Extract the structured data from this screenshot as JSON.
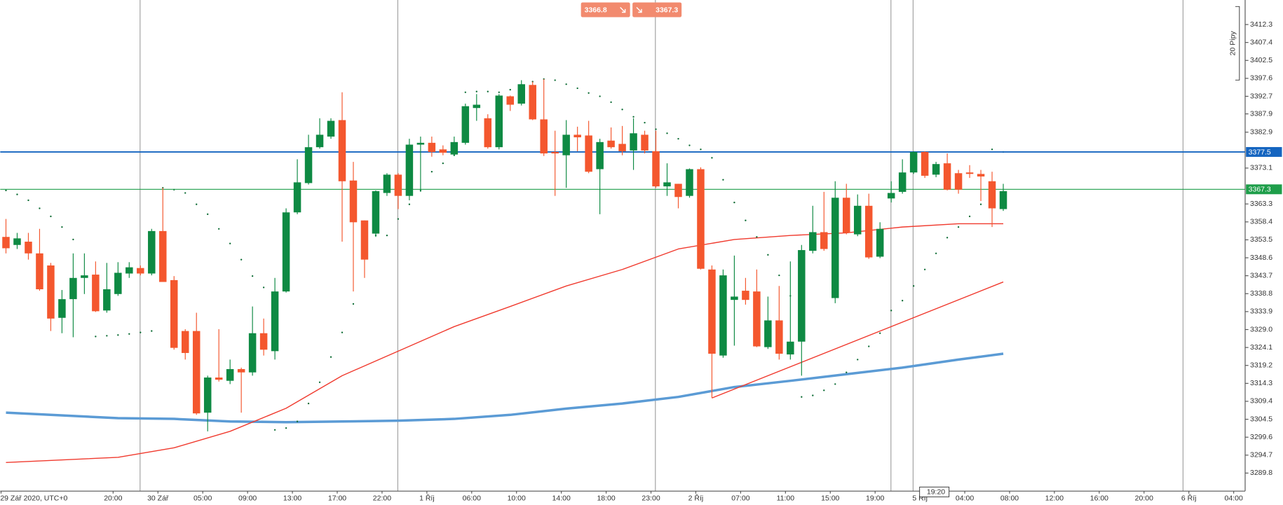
{
  "chart_data": {
    "type": "candlestick",
    "up_color": "#0e8a43",
    "down_color": "#f4572e",
    "open": [
      3354.3,
      3352.1,
      3353.0,
      3349.8,
      3346.5,
      3332.2,
      3337.3,
      3343.1,
      3344.0,
      3334.2,
      3338.7,
      3344.3,
      3345.8,
      3344.3,
      3355.9,
      3342.5,
      3328.6,
      3328.6,
      3306.3,
      3315.9,
      3315.0,
      3318.2,
      3317.3,
      3328.0,
      3323.1,
      3339.4,
      3361.0,
      3369.0,
      3378.8,
      3381.7,
      3386.2,
      3369.7,
      3358.8,
      3355.2,
      3366.3,
      3371.3,
      3365.5,
      3379.5,
      3380.0,
      3378.2,
      3376.8,
      3380.0,
      3389.5,
      3386.7,
      3378.8,
      3392.7,
      3390.7,
      3395.8,
      3386.4,
      3377.5,
      3376.6,
      3382.2,
      3382.0,
      3372.8,
      3380.6,
      3379.7,
      3377.9,
      3382.2,
      3377.7,
      3368.1,
      3368.8,
      3365.5,
      3372.8,
      3345.4,
      3321.9,
      3337.1,
      3339.6,
      3339.4,
      3324.2,
      3331.5,
      3322.2,
      3325.7,
      3350.5,
      3355.6,
      3337.6,
      3365.0,
      3355.0,
      3362.8,
      3348.9,
      3364.8,
      3366.6,
      3371.9,
      3377.5,
      3371.3,
      3374.4,
      3371.7,
      3371.9,
      3371.5,
      3369.5,
      3361.9
    ],
    "high": [
      3359.2,
      3355.4,
      3355.4,
      3356.5,
      3347.2,
      3339.8,
      3349.8,
      3349.8,
      3347.6,
      3347.2,
      3347.4,
      3347.4,
      3346.5,
      3356.5,
      3367.7,
      3343.6,
      3329.1,
      3333.6,
      3316.4,
      3329.1,
      3320.8,
      3318.6,
      3335.3,
      3332.0,
      3343.1,
      3362.1,
      3375.5,
      3382.2,
      3386.7,
      3386.7,
      3393.8,
      3374.8,
      3358.8,
      3367.0,
      3371.7,
      3371.7,
      3381.1,
      3381.7,
      3381.7,
      3379.3,
      3381.7,
      3390.7,
      3393.3,
      3387.8,
      3393.3,
      3392.9,
      3397.1,
      3396.7,
      3397.4,
      3383.3,
      3386.2,
      3384.4,
      3386.0,
      3381.1,
      3384.2,
      3384.6,
      3386.7,
      3383.3,
      3383.3,
      3374.4,
      3368.8,
      3373.0,
      3373.3,
      3346.5,
      3345.4,
      3349.2,
      3343.1,
      3345.4,
      3338.0,
      3340.9,
      3347.6,
      3352.1,
      3362.8,
      3366.6,
      3369.5,
      3368.8,
      3365.9,
      3366.1,
      3358.3,
      3369.5,
      3375.5,
      3377.7,
      3377.7,
      3374.8,
      3377.1,
      3372.6,
      3373.9,
      3372.6,
      3372.1,
      3368.8
    ],
    "low": [
      3349.8,
      3351.0,
      3348.1,
      3339.6,
      3328.6,
      3328.0,
      3326.9,
      3338.7,
      3333.8,
      3333.6,
      3338.2,
      3343.1,
      3343.8,
      3343.8,
      3342.0,
      3323.5,
      3320.8,
      3305.7,
      3301.2,
      3314.8,
      3314.1,
      3306.3,
      3316.4,
      3321.9,
      3320.8,
      3339.1,
      3360.5,
      3368.6,
      3378.4,
      3381.1,
      3353.0,
      3339.4,
      3343.1,
      3354.3,
      3365.5,
      3361.9,
      3364.3,
      3366.6,
      3376.2,
      3376.6,
      3376.4,
      3379.5,
      3386.0,
      3378.4,
      3378.2,
      3388.7,
      3390.2,
      3386.2,
      3376.4,
      3365.5,
      3367.7,
      3377.7,
      3371.7,
      3360.5,
      3378.4,
      3376.6,
      3372.6,
      3377.1,
      3367.7,
      3365.5,
      3362.1,
      3365.0,
      3345.4,
      3310.3,
      3321.3,
      3324.6,
      3335.8,
      3324.2,
      3323.7,
      3320.8,
      3320.8,
      3316.4,
      3349.8,
      3350.5,
      3336.2,
      3355.0,
      3354.5,
      3348.3,
      3348.5,
      3363.7,
      3366.1,
      3371.5,
      3370.4,
      3370.6,
      3367.0,
      3366.1,
      3370.4,
      3364.1,
      3357.0,
      3361.4
    ],
    "close": [
      3351.2,
      3353.9,
      3349.8,
      3340.0,
      3332.0,
      3337.3,
      3343.1,
      3343.8,
      3334.0,
      3340.0,
      3344.5,
      3346.0,
      3344.3,
      3355.9,
      3342.0,
      3324.0,
      3322.6,
      3306.1,
      3315.9,
      3315.3,
      3318.2,
      3317.3,
      3328.0,
      3323.5,
      3339.4,
      3361.0,
      3369.2,
      3378.8,
      3382.2,
      3386.0,
      3369.5,
      3358.3,
      3348.1,
      3366.8,
      3371.3,
      3365.5,
      3379.5,
      3380.0,
      3377.5,
      3377.3,
      3380.2,
      3390.0,
      3390.4,
      3378.8,
      3392.9,
      3390.4,
      3396.0,
      3386.4,
      3377.1,
      3377.1,
      3382.2,
      3381.5,
      3372.1,
      3380.2,
      3378.8,
      3377.7,
      3382.6,
      3377.9,
      3368.1,
      3369.2,
      3365.2,
      3372.8,
      3345.6,
      3322.4,
      3343.8,
      3338.0,
      3337.1,
      3324.4,
      3331.5,
      3322.4,
      3325.7,
      3350.7,
      3355.6,
      3351.0,
      3365.0,
      3355.4,
      3362.8,
      3348.7,
      3356.5,
      3366.3,
      3371.9,
      3377.5,
      3371.0,
      3374.2,
      3367.2,
      3367.2,
      3371.5,
      3370.8,
      3362.1,
      3366.8
    ],
    "sar": {
      "color": "#0b6b33",
      "values": [
        3367.0,
        3365.9,
        3364.3,
        3362.1,
        3359.9,
        3357.0,
        3353.6,
        null,
        3327.1,
        3327.3,
        3327.5,
        3327.8,
        3328.2,
        3328.6,
        3367.7,
        3367.2,
        3366.3,
        3363.2,
        3360.5,
        3356.5,
        3352.5,
        3348.1,
        3343.6,
        3340.5,
        3301.6,
        3302.1,
        3303.9,
        3308.8,
        3314.6,
        3321.5,
        3328.2,
        3336.0,
        3348.5,
        3354.7,
        3354.7,
        3359.2,
        3363.2,
        3367.0,
        3372.1,
        3374.4,
        3376.6,
        3393.8,
        3394.0,
        3394.0,
        3393.8,
        3394.5,
        3395.8,
        3396.7,
        3397.4,
        3397.1,
        3396.0,
        3394.9,
        3393.6,
        3392.7,
        3391.1,
        3389.1,
        3387.1,
        3385.5,
        3383.7,
        3382.6,
        3381.1,
        3379.3,
        3378.2,
        3375.9,
        3369.9,
        3363.7,
        3358.8,
        3354.3,
        3349.4,
        3343.8,
        3338.2,
        3310.6,
        3311.0,
        3312.4,
        3314.1,
        3317.3,
        3320.8,
        3324.4,
        3328.0,
        3334.2,
        3336.9,
        3340.9,
        3345.4,
        3349.8,
        3354.1,
        3357.0,
        3359.9,
        3363.2,
        3378.2,
        3377.5
      ]
    },
    "indicators": [
      {
        "type": "line",
        "color": "#5b9bd5",
        "width": 3,
        "x": [
          0,
          10,
          15,
          20,
          25,
          30,
          35,
          40,
          45,
          50,
          55,
          60,
          65,
          70,
          75,
          80,
          85,
          89
        ],
        "values": [
          3306.3,
          3304.8,
          3304.6,
          3303.9,
          3303.7,
          3303.9,
          3304.1,
          3304.6,
          3305.7,
          3307.4,
          3308.8,
          3310.6,
          3313.3,
          3315.0,
          3316.8,
          3318.6,
          3320.8,
          3322.4
        ]
      },
      {
        "type": "line",
        "color": "#f03a2e",
        "width": 1.2,
        "x": [
          0,
          10,
          15,
          20,
          25,
          30,
          35,
          40,
          45,
          50,
          55,
          60,
          65,
          70,
          75,
          80,
          85,
          89
        ],
        "values": [
          3292.7,
          3294.1,
          3296.7,
          3301.2,
          3307.5,
          3316.4,
          3323.1,
          3329.8,
          3335.3,
          3340.9,
          3345.4,
          3351.0,
          3353.6,
          3354.7,
          3355.4,
          3357.0,
          3357.9,
          3357.9
        ]
      },
      {
        "type": "line",
        "color": "#f03a2e",
        "width": 1.2,
        "x": [
          63,
          89
        ],
        "values": [
          3310.3,
          3342.0
        ]
      }
    ],
    "price_lines": [
      {
        "value": 3377.5,
        "color": "#1565c0"
      },
      {
        "value": 3367.3,
        "color": "#1e9e4a"
      }
    ],
    "ylim": [
      3285.1,
      3419.0
    ],
    "yticks": [
      3412.3,
      3407.4,
      3402.5,
      3397.6,
      3392.7,
      3387.9,
      3382.9,
      3373.1,
      3363.3,
      3358.4,
      3353.5,
      3348.6,
      3343.7,
      3338.8,
      3333.9,
      {
        "value": 3329,
        "label": "3329.0"
      },
      3324.1,
      3319.2,
      3314.3,
      3309.4,
      3304.5,
      3299.6,
      3294.7,
      3289.8
    ],
    "x_labels": [
      "29 Zář 2020, UTC+0",
      "20:00",
      "30 Zář",
      "05:00",
      "09:00",
      "13:00",
      "17:00",
      "22:00",
      "1 Říj",
      "06:00",
      "10:00",
      "14:00",
      "18:00",
      "23:00",
      "2 Říj",
      "07:00",
      "11:00",
      "15:00",
      "19:00",
      "5 Říj",
      "04:00",
      "08:00",
      "12:00",
      "16:00",
      "20:00",
      "6 Říj",
      "04:00"
    ],
    "sell_price": 3366.8,
    "buy_price": 3367.3,
    "pip_scale_label": "20 Pipy",
    "crosshair_time": "19:20"
  }
}
